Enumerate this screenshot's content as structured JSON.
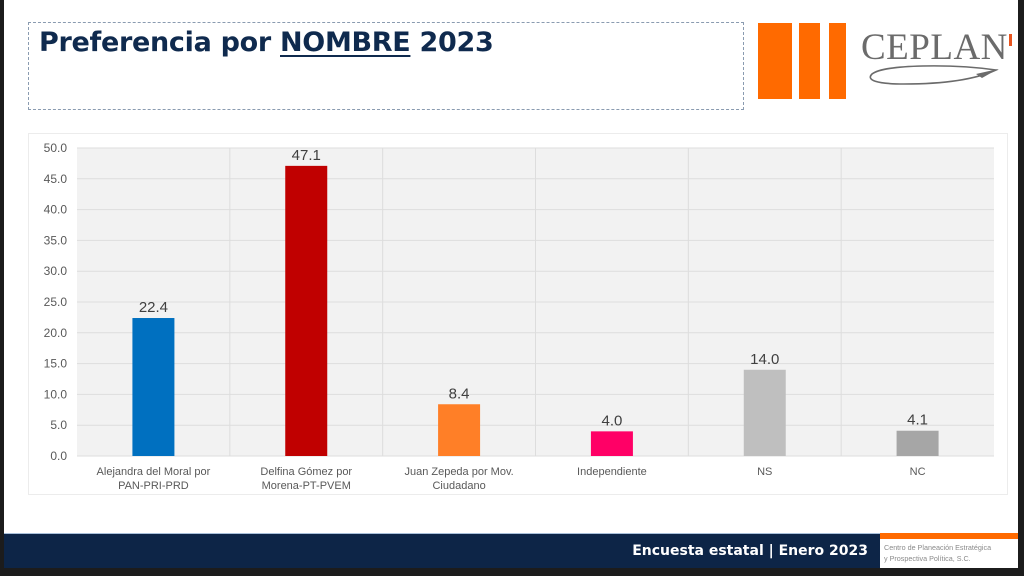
{
  "header": {
    "title_pre": "Preferencia por ",
    "title_emph": "NOMBRE",
    "title_post": " 2023"
  },
  "logo": {
    "name": "CEPLAN",
    "bar_color": "#ff6a00"
  },
  "footer": {
    "survey_label": "Encuesta estatal | Enero 2023",
    "org_line1": "Centro de Planeación Estratégica",
    "org_line2": "y Prospectiva Política, S.C."
  },
  "chart_data": {
    "type": "bar",
    "title": "Preferencia por NOMBRE 2023",
    "xlabel": "",
    "ylabel": "",
    "ylim": [
      0,
      50
    ],
    "yticks": [
      0,
      5,
      10,
      15,
      20,
      25,
      30,
      35,
      40,
      45,
      50
    ],
    "ytick_labels": [
      "0.0",
      "5.0",
      "10.0",
      "15.0",
      "20.0",
      "25.0",
      "30.0",
      "35.0",
      "40.0",
      "45.0",
      "50.0"
    ],
    "grid": true,
    "legend": "none",
    "categories": [
      [
        "Alejandra del Moral por",
        "PAN-PRI-PRD"
      ],
      [
        "Delfina Gómez por",
        "Morena-PT-PVEM"
      ],
      [
        "Juan Zepeda por Mov.",
        "Ciudadano"
      ],
      [
        "Independiente"
      ],
      [
        "NS"
      ],
      [
        "NC"
      ]
    ],
    "values": [
      22.4,
      47.1,
      8.4,
      4.0,
      14.0,
      4.1
    ],
    "value_labels": [
      "22.4",
      "47.1",
      "8.4",
      "4.0",
      "14.0",
      "4.1"
    ],
    "colors": [
      "#0070c0",
      "#c00000",
      "#ff7f27",
      "#ff0066",
      "#bfbfbf",
      "#a6a6a6"
    ]
  }
}
